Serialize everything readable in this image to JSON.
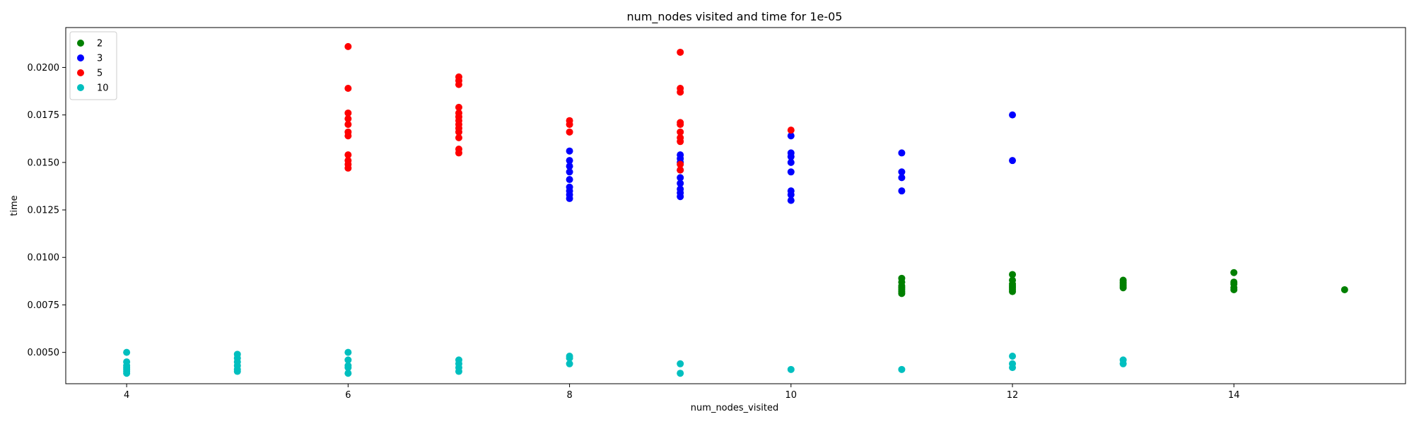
{
  "chart_data": {
    "type": "scatter",
    "title": "num_nodes visited and time for 1e-05",
    "xlabel": "num_nodes_visited",
    "ylabel": "time",
    "xlim": [
      3.45,
      15.55
    ],
    "ylim": [
      0.00335,
      0.0221
    ],
    "xticks": [
      4,
      6,
      8,
      10,
      12,
      14
    ],
    "xtick_labels": [
      "4",
      "6",
      "8",
      "10",
      "12",
      "14"
    ],
    "yticks": [
      0.005,
      0.0075,
      0.01,
      0.0125,
      0.015,
      0.0175,
      0.02
    ],
    "ytick_labels": [
      "0.0050",
      "0.0075",
      "0.0100",
      "0.0125",
      "0.0150",
      "0.0175",
      "0.0200"
    ],
    "grid": false,
    "legend_position": "top-left",
    "series": [
      {
        "name": "2",
        "color": "#008000",
        "points": [
          [
            11,
            0.0089
          ],
          [
            11,
            0.0087
          ],
          [
            11,
            0.0085
          ],
          [
            11,
            0.0084
          ],
          [
            11,
            0.0083
          ],
          [
            11,
            0.0082
          ],
          [
            11,
            0.0081
          ],
          [
            12,
            0.0091
          ],
          [
            12,
            0.0088
          ],
          [
            12,
            0.0086
          ],
          [
            12,
            0.0085
          ],
          [
            12,
            0.0084
          ],
          [
            12,
            0.0083
          ],
          [
            12,
            0.0082
          ],
          [
            13,
            0.0088
          ],
          [
            13,
            0.0087
          ],
          [
            13,
            0.0086
          ],
          [
            13,
            0.0085
          ],
          [
            13,
            0.0084
          ],
          [
            14,
            0.0092
          ],
          [
            14,
            0.0087
          ],
          [
            14,
            0.0086
          ],
          [
            14,
            0.0084
          ],
          [
            14,
            0.0083
          ],
          [
            15,
            0.0083
          ]
        ]
      },
      {
        "name": "3",
        "color": "#0000ff",
        "points": [
          [
            8,
            0.0156
          ],
          [
            8,
            0.0151
          ],
          [
            8,
            0.0148
          ],
          [
            8,
            0.0145
          ],
          [
            8,
            0.0141
          ],
          [
            8,
            0.0137
          ],
          [
            8,
            0.0135
          ],
          [
            8,
            0.0133
          ],
          [
            8,
            0.0131
          ],
          [
            9,
            0.0154
          ],
          [
            9,
            0.0152
          ],
          [
            9,
            0.015
          ],
          [
            9,
            0.0146
          ],
          [
            9,
            0.0142
          ],
          [
            9,
            0.0139
          ],
          [
            9,
            0.0136
          ],
          [
            9,
            0.0134
          ],
          [
            9,
            0.0132
          ],
          [
            10,
            0.0164
          ],
          [
            10,
            0.0155
          ],
          [
            10,
            0.0153
          ],
          [
            10,
            0.015
          ],
          [
            10,
            0.0145
          ],
          [
            10,
            0.0135
          ],
          [
            10,
            0.0133
          ],
          [
            10,
            0.013
          ],
          [
            11,
            0.0155
          ],
          [
            11,
            0.0145
          ],
          [
            11,
            0.0142
          ],
          [
            11,
            0.0135
          ],
          [
            12,
            0.0175
          ],
          [
            12,
            0.0151
          ]
        ]
      },
      {
        "name": "5",
        "color": "#ff0000",
        "points": [
          [
            6,
            0.0211
          ],
          [
            6,
            0.0189
          ],
          [
            6,
            0.0176
          ],
          [
            6,
            0.0173
          ],
          [
            6,
            0.017
          ],
          [
            6,
            0.0166
          ],
          [
            6,
            0.0164
          ],
          [
            6,
            0.0154
          ],
          [
            6,
            0.0151
          ],
          [
            6,
            0.0149
          ],
          [
            6,
            0.0147
          ],
          [
            7,
            0.0195
          ],
          [
            7,
            0.0193
          ],
          [
            7,
            0.0191
          ],
          [
            7,
            0.0179
          ],
          [
            7,
            0.0176
          ],
          [
            7,
            0.0174
          ],
          [
            7,
            0.0172
          ],
          [
            7,
            0.017
          ],
          [
            7,
            0.0168
          ],
          [
            7,
            0.0166
          ],
          [
            7,
            0.0163
          ],
          [
            7,
            0.0157
          ],
          [
            7,
            0.0155
          ],
          [
            8,
            0.0172
          ],
          [
            8,
            0.017
          ],
          [
            8,
            0.0166
          ],
          [
            9,
            0.0208
          ],
          [
            9,
            0.0189
          ],
          [
            9,
            0.0187
          ],
          [
            9,
            0.0171
          ],
          [
            9,
            0.017
          ],
          [
            9,
            0.0166
          ],
          [
            9,
            0.0163
          ],
          [
            9,
            0.0161
          ],
          [
            9,
            0.0149
          ],
          [
            9,
            0.0146
          ],
          [
            10,
            0.0167
          ]
        ]
      },
      {
        "name": "10",
        "color": "#00bfbf",
        "points": [
          [
            4,
            0.005
          ],
          [
            4,
            0.0045
          ],
          [
            4,
            0.0043
          ],
          [
            4,
            0.0042
          ],
          [
            4,
            0.0041
          ],
          [
            4,
            0.004
          ],
          [
            4,
            0.0039
          ],
          [
            5,
            0.0049
          ],
          [
            5,
            0.0047
          ],
          [
            5,
            0.0045
          ],
          [
            5,
            0.0043
          ],
          [
            5,
            0.0041
          ],
          [
            5,
            0.004
          ],
          [
            6,
            0.005
          ],
          [
            6,
            0.0046
          ],
          [
            6,
            0.0043
          ],
          [
            6,
            0.0042
          ],
          [
            6,
            0.0039
          ],
          [
            7,
            0.0046
          ],
          [
            7,
            0.0044
          ],
          [
            7,
            0.0042
          ],
          [
            7,
            0.004
          ],
          [
            8,
            0.0048
          ],
          [
            8,
            0.0047
          ],
          [
            8,
            0.0044
          ],
          [
            9,
            0.0044
          ],
          [
            9,
            0.0039
          ],
          [
            10,
            0.0041
          ],
          [
            11,
            0.0041
          ],
          [
            12,
            0.0048
          ],
          [
            12,
            0.0044
          ],
          [
            12,
            0.0042
          ],
          [
            13,
            0.0046
          ],
          [
            13,
            0.0044
          ]
        ]
      }
    ]
  }
}
